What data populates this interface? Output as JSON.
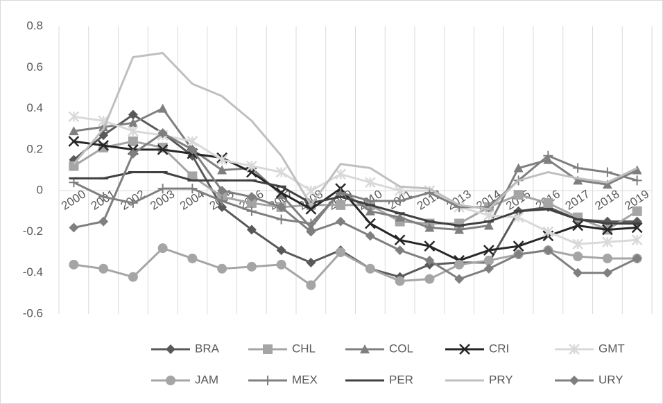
{
  "chart_data": {
    "type": "line",
    "categories": [
      "2000",
      "2001",
      "2002",
      "2003",
      "2004",
      "2005",
      "2006",
      "2007",
      "2008",
      "2009",
      "2010",
      "2011",
      "2012",
      "2013",
      "2014",
      "2015",
      "2016",
      "2017",
      "2018",
      "2019"
    ],
    "ylim": [
      -0.6,
      0.8
    ],
    "yticks": [
      0.8,
      0.6,
      0.4,
      0.2,
      0,
      -0.2,
      -0.4,
      -0.6
    ],
    "grid": true,
    "legend": "bottom",
    "series": [
      {
        "name": "BRA",
        "color": "#595959",
        "marker": "diamond",
        "values": [
          0.15,
          0.27,
          0.37,
          0.28,
          0.17,
          -0.08,
          -0.19,
          -0.29,
          -0.35,
          -0.29,
          -0.38,
          -0.42,
          -0.36,
          -0.35,
          -0.35,
          -0.1,
          -0.08,
          -0.14,
          -0.15,
          -0.15
        ]
      },
      {
        "name": "CHL",
        "color": "#a5a5a5",
        "marker": "square",
        "values": [
          0.12,
          0.21,
          0.24,
          0.21,
          0.07,
          -0.03,
          -0.06,
          -0.08,
          -0.07,
          -0.07,
          -0.07,
          -0.15,
          -0.16,
          -0.16,
          -0.08,
          -0.02,
          -0.06,
          -0.13,
          -0.19,
          -0.1
        ]
      },
      {
        "name": "COL",
        "color": "#7f7f7f",
        "marker": "triangle",
        "values": [
          0.29,
          0.31,
          0.33,
          0.4,
          0.2,
          0.1,
          0.11,
          -0.02,
          -0.18,
          0.0,
          -0.1,
          -0.13,
          -0.18,
          -0.19,
          -0.17,
          0.11,
          0.15,
          0.05,
          0.03,
          0.1
        ]
      },
      {
        "name": "CRI",
        "color": "#262626",
        "marker": "x",
        "values": [
          0.24,
          0.22,
          0.2,
          0.2,
          0.18,
          0.16,
          0.09,
          -0.01,
          -0.09,
          0.01,
          -0.16,
          -0.24,
          -0.27,
          -0.34,
          -0.29,
          -0.27,
          -0.22,
          -0.17,
          -0.19,
          -0.18
        ]
      },
      {
        "name": "GMT",
        "color": "#d9d9d9",
        "marker": "star",
        "values": [
          0.36,
          0.34,
          0.29,
          0.27,
          0.24,
          0.15,
          0.12,
          0.09,
          0.0,
          0.08,
          0.04,
          0.0,
          0.0,
          -0.08,
          -0.12,
          -0.13,
          -0.2,
          -0.26,
          -0.25,
          -0.24
        ]
      },
      {
        "name": "JAM",
        "color": "#a5a5a5",
        "marker": "circle",
        "values": [
          -0.36,
          -0.38,
          -0.42,
          -0.28,
          -0.33,
          -0.38,
          -0.37,
          -0.36,
          -0.46,
          -0.3,
          -0.38,
          -0.44,
          -0.43,
          -0.36,
          -0.34,
          -0.31,
          -0.29,
          -0.32,
          -0.33,
          -0.33
        ]
      },
      {
        "name": "MEX",
        "color": "#7f7f7f",
        "marker": "plus",
        "values": [
          0.04,
          -0.03,
          -0.06,
          0.01,
          0.01,
          -0.05,
          -0.1,
          -0.14,
          -0.16,
          -0.01,
          -0.05,
          -0.05,
          -0.01,
          -0.08,
          -0.08,
          0.05,
          0.17,
          0.11,
          0.09,
          0.05
        ]
      },
      {
        "name": "PER",
        "color": "#404040",
        "marker": "dash",
        "values": [
          0.06,
          0.06,
          0.09,
          0.09,
          0.05,
          0.05,
          0.05,
          0.02,
          -0.06,
          -0.03,
          -0.07,
          -0.11,
          -0.15,
          -0.17,
          -0.15,
          -0.1,
          -0.09,
          -0.14,
          -0.16,
          -0.16
        ]
      },
      {
        "name": "PRY",
        "color": "#bfbfbf",
        "marker": "none",
        "values": [
          0.13,
          0.3,
          0.65,
          0.67,
          0.52,
          0.46,
          0.34,
          0.17,
          -0.07,
          0.13,
          0.11,
          0.02,
          0.01,
          -0.07,
          -0.09,
          0.05,
          0.09,
          0.06,
          0.04,
          0.11
        ]
      },
      {
        "name": "URY",
        "color": "#7f7f7f",
        "marker": "diamond",
        "values": [
          -0.18,
          -0.15,
          0.18,
          0.28,
          0.2,
          0.0,
          -0.03,
          -0.08,
          -0.2,
          -0.15,
          -0.22,
          -0.29,
          -0.34,
          -0.43,
          -0.38,
          -0.31,
          -0.29,
          -0.4,
          -0.4,
          -0.33
        ]
      }
    ]
  }
}
